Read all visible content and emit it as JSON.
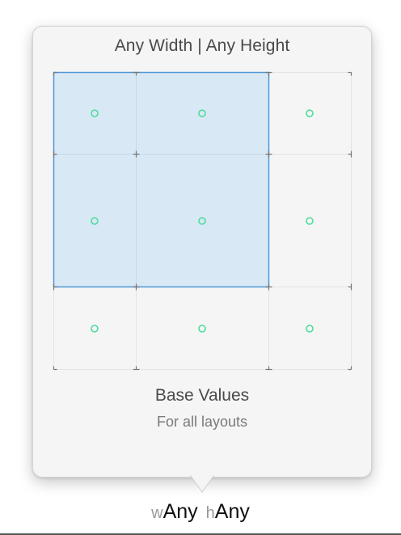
{
  "popover": {
    "title": "Any Width | Any Height",
    "base_title": "Base Values",
    "base_subtitle": "For all layouts"
  },
  "size_class": {
    "width_prefix": "w",
    "width_value": "Any",
    "height_prefix": "h",
    "height_value": "Any"
  },
  "grid": {
    "columns": [
      "compact",
      "any",
      "regular"
    ],
    "rows": [
      "compact",
      "any",
      "regular"
    ],
    "selected_columns": [
      "compact",
      "any"
    ],
    "selected_rows": [
      "compact",
      "any"
    ]
  },
  "colors": {
    "selection_fill": "#d8e8f5",
    "selection_border": "#4e97d6",
    "dot": "#4fdc9c",
    "grid_line": "#e2e2e2",
    "popover_bg": "#f5f5f5"
  },
  "icons": {
    "cell_dot": "circle-outline"
  }
}
